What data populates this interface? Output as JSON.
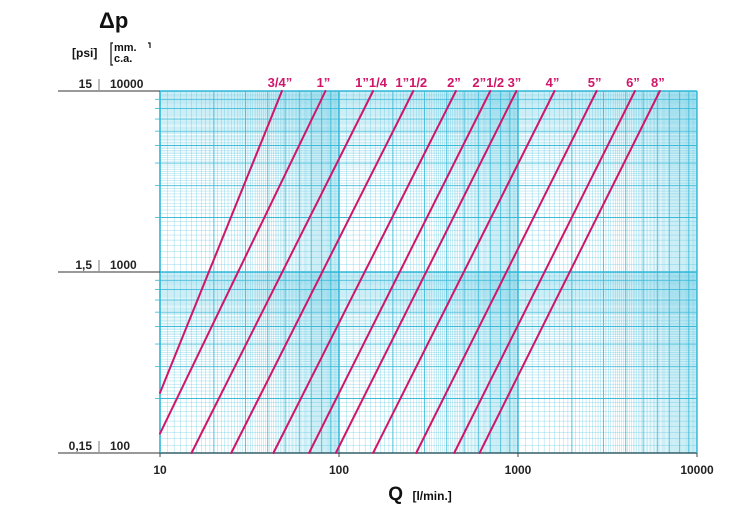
{
  "chart_data": {
    "type": "line",
    "title": "",
    "y_title": "Δp",
    "y_units": {
      "psi": "[psi]",
      "mmca_top": "mm.",
      "mmca_bottom": "c.a."
    },
    "xlabel": {
      "main": "Q",
      "unit": "[l/min.]"
    },
    "x_scale": "log",
    "y_scale": "log",
    "xlim": [
      10,
      10000
    ],
    "ylim": [
      100,
      10000
    ],
    "grid": true,
    "x_ticks": [
      {
        "value": 10,
        "label": "10"
      },
      {
        "value": 100,
        "label": "100"
      },
      {
        "value": 1000,
        "label": "1000"
      },
      {
        "value": 10000,
        "label": "10000"
      }
    ],
    "y_ticks": [
      {
        "value": 100,
        "label_mm": "100",
        "label_psi": "0,15"
      },
      {
        "value": 1000,
        "label_mm": "1000",
        "label_psi": "1,5"
      },
      {
        "value": 10000,
        "label_mm": "10000",
        "label_psi": "15"
      }
    ],
    "line_color": "#d0166a",
    "grid_color": "#33b8d8",
    "series": [
      {
        "name": "3/4\"",
        "label": "3/4”",
        "x": [
          10,
          48
        ],
        "y": [
          215,
          10000
        ]
      },
      {
        "name": "1\"",
        "label": "1”",
        "x": [
          10,
          84
        ],
        "y": [
          128,
          10000
        ]
      },
      {
        "name": "1\"1/4",
        "label": "1”1/4",
        "x": [
          15,
          155
        ],
        "y": [
          100,
          10000
        ]
      },
      {
        "name": "1\"1/2",
        "label": "1”1/2",
        "x": [
          25,
          260
        ],
        "y": [
          100,
          10000
        ]
      },
      {
        "name": "2\"",
        "label": "2”",
        "x": [
          43,
          450
        ],
        "y": [
          100,
          10000
        ]
      },
      {
        "name": "2\"1/2",
        "label": "2”1/2",
        "x": [
          68,
          700
        ],
        "y": [
          100,
          10000
        ]
      },
      {
        "name": "3\"",
        "label": "3”",
        "x": [
          96,
          980
        ],
        "y": [
          100,
          10000
        ]
      },
      {
        "name": "4\"",
        "label": "4”",
        "x": [
          155,
          1600
        ],
        "y": [
          100,
          10000
        ]
      },
      {
        "name": "5\"",
        "label": "5”",
        "x": [
          270,
          2750
        ],
        "y": [
          100,
          10000
        ]
      },
      {
        "name": "6\"",
        "label": "6”",
        "x": [
          440,
          4500
        ],
        "y": [
          100,
          10000
        ]
      },
      {
        "name": "8\"",
        "label": "8”",
        "x": [
          610,
          6200
        ],
        "y": [
          100,
          10000
        ]
      }
    ]
  }
}
